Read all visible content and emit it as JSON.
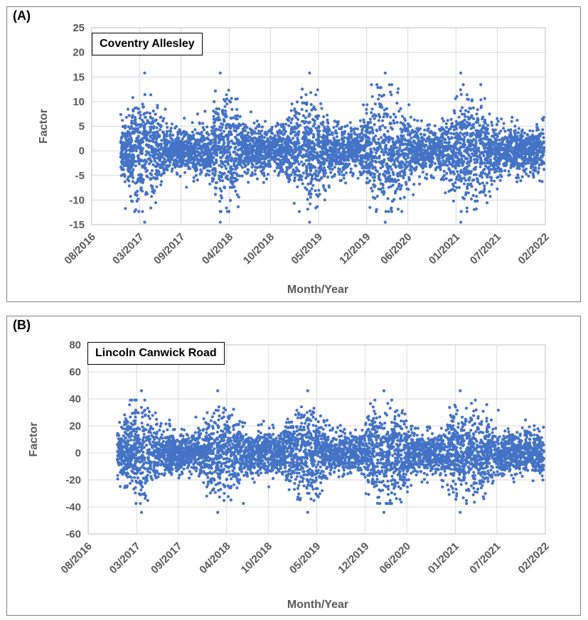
{
  "chart_data": [
    {
      "panel_label": "(A)",
      "series_label": "Coventry Allesley",
      "type": "scatter",
      "xlabel": "Month/Year",
      "ylabel": "Factor",
      "ylim": [
        -15,
        25
      ],
      "yticks": [
        "25",
        "20",
        "15",
        "10",
        "5",
        "0",
        "-5",
        "-10",
        "-15"
      ],
      "xticks": [
        "08/2016",
        "03/2017",
        "09/2017",
        "04/2018",
        "10/2018",
        "05/2019",
        "12/2019",
        "06/2020",
        "01/2021",
        "07/2021",
        "02/2022"
      ],
      "grid": true,
      "marker_color": "#4472c4",
      "data_range_x": [
        "12/2016",
        "01/2022"
      ],
      "typical_range_y": [
        -8,
        8
      ],
      "peak_y": 15.8,
      "min_y": -14.5,
      "peaks_x": [
        "04/2017",
        "03/2018",
        "04/2019",
        "03/2020",
        "02/2021"
      ]
    },
    {
      "panel_label": "(B)",
      "series_label": "Lincoln Canwick Road",
      "type": "scatter",
      "xlabel": "Month/Year",
      "ylabel": "Factor",
      "ylim": [
        -60,
        80
      ],
      "yticks": [
        "80",
        "60",
        "40",
        "20",
        "0",
        "-20",
        "-40",
        "-60"
      ],
      "xticks": [
        "08/2016",
        "03/2017",
        "09/2017",
        "04/2018",
        "10/2018",
        "05/2019",
        "12/2019",
        "06/2020",
        "01/2021",
        "07/2021",
        "02/2022"
      ],
      "grid": true,
      "marker_color": "#4472c4",
      "data_range_x": [
        "12/2016",
        "01/2022"
      ],
      "typical_range_y": [
        -25,
        25
      ],
      "peak_y": 46,
      "min_y": -44,
      "peaks_x": [
        "04/2017",
        "03/2018",
        "04/2019",
        "03/2020",
        "02/2021"
      ]
    }
  ]
}
